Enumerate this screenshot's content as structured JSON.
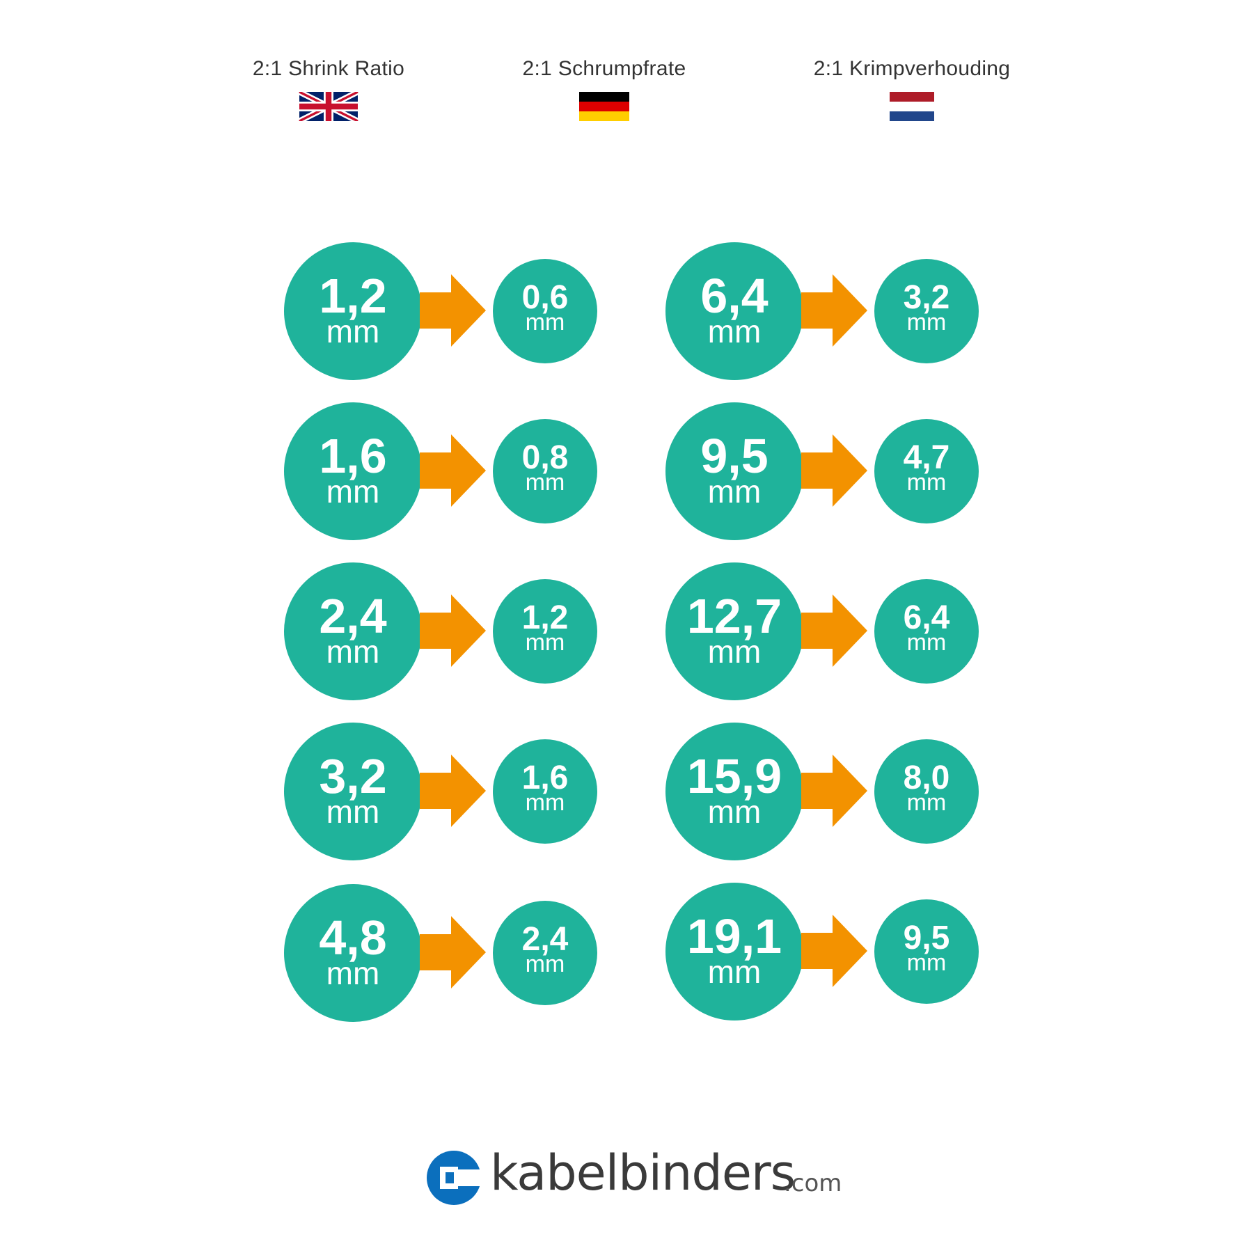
{
  "header": {
    "english": {
      "label": "2:1 Shrink Ratio",
      "flag": "uk-flag"
    },
    "german": {
      "label": "2:1 Schrumpfrate",
      "flag": "germany-flag"
    },
    "dutch": {
      "label": "2:1 Krimpverhouding",
      "flag": "netherlands-flag"
    }
  },
  "colors": {
    "circle": "#1fb39b",
    "arrow": "#f39200",
    "logo_blue": "#0b6fbd"
  },
  "unit": "mm",
  "left_column": [
    {
      "from": "1,2",
      "to": "0,6"
    },
    {
      "from": "1,6",
      "to": "0,8"
    },
    {
      "from": "2,4",
      "to": "1,2"
    },
    {
      "from": "3,2",
      "to": "1,6"
    },
    {
      "from": "4,8",
      "to": "2,4"
    }
  ],
  "right_column": [
    {
      "from": "6,4",
      "to": "3,2"
    },
    {
      "from": "9,5",
      "to": "4,7"
    },
    {
      "from": "12,7",
      "to": "6,4"
    },
    {
      "from": "15,9",
      "to": "8,0"
    },
    {
      "from": "19,1",
      "to": "9,5"
    }
  ],
  "logo": {
    "name": "kabelbinders",
    "tld": ".com"
  }
}
